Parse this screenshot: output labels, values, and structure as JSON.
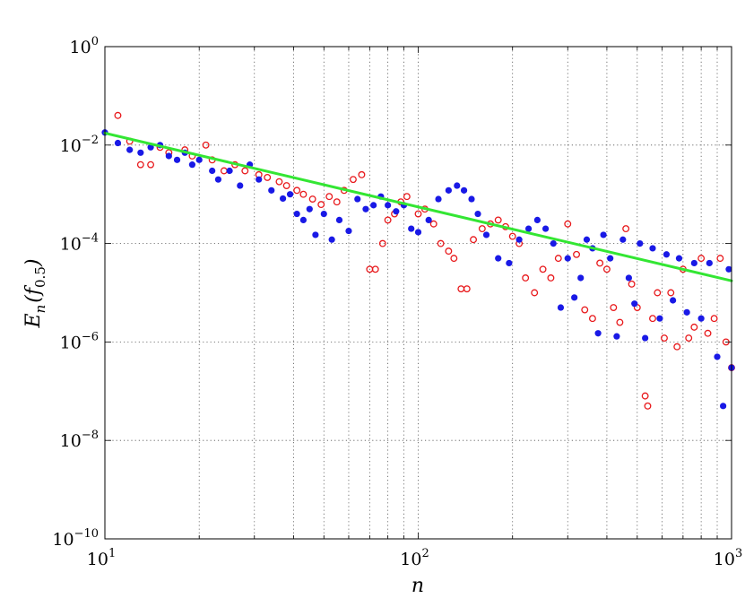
{
  "chart_data": {
    "type": "scatter",
    "x_scale": "log",
    "y_scale": "log",
    "xlim": [
      10,
      1000
    ],
    "ylim": [
      1e-10,
      1
    ],
    "grid": true,
    "xlabel": "n",
    "ylabel": {
      "main": "E",
      "sub_n": "n",
      "arg_open": "(",
      "arg_f": "f",
      "arg_sub": "0.5",
      "arg_close": ")"
    },
    "x_ticks": [
      {
        "base": "10",
        "exp": "1",
        "value": 10
      },
      {
        "base": "10",
        "exp": "2",
        "value": 100
      },
      {
        "base": "10",
        "exp": "3",
        "value": 1000
      }
    ],
    "y_ticks": [
      {
        "base": "10",
        "exp": "0",
        "value": 1
      },
      {
        "base": "10",
        "exp": "−2",
        "value": 0.01
      },
      {
        "base": "10",
        "exp": "−4",
        "value": 0.0001
      },
      {
        "base": "10",
        "exp": "−6",
        "value": 1e-06
      },
      {
        "base": "10",
        "exp": "−8",
        "value": 1e-08
      },
      {
        "base": "10",
        "exp": "−10",
        "value": 1e-10
      }
    ],
    "series": [
      {
        "name": "red open circles",
        "marker": "open-circle",
        "color": "#e8191c",
        "points": [
          [
            11,
            0.04
          ],
          [
            12,
            0.012
          ],
          [
            13,
            0.004
          ],
          [
            14,
            0.004
          ],
          [
            15,
            0.009
          ],
          [
            16,
            0.007
          ],
          [
            18,
            0.008
          ],
          [
            19,
            0.006
          ],
          [
            21,
            0.01
          ],
          [
            22,
            0.005
          ],
          [
            24,
            0.003
          ],
          [
            26,
            0.004
          ],
          [
            28,
            0.003
          ],
          [
            31,
            0.0025
          ],
          [
            33,
            0.0022
          ],
          [
            36,
            0.0018
          ],
          [
            38,
            0.0015
          ],
          [
            41,
            0.0012
          ],
          [
            43,
            0.001
          ],
          [
            46,
            0.0008
          ],
          [
            49,
            0.00062
          ],
          [
            52,
            0.0009
          ],
          [
            55,
            0.0007
          ],
          [
            58,
            0.0012
          ],
          [
            62,
            0.002
          ],
          [
            66,
            0.0025
          ],
          [
            70,
            3e-05
          ],
          [
            73,
            3e-05
          ],
          [
            77,
            0.0001
          ],
          [
            80,
            0.0003
          ],
          [
            84,
            0.0004
          ],
          [
            88,
            0.0007
          ],
          [
            92,
            0.0009
          ],
          [
            100,
            0.0004
          ],
          [
            105,
            0.0005
          ],
          [
            112,
            0.00025
          ],
          [
            118,
            0.0001
          ],
          [
            125,
            7e-05
          ],
          [
            130,
            5e-05
          ],
          [
            137,
            1.2e-05
          ],
          [
            143,
            1.2e-05
          ],
          [
            150,
            0.00012
          ],
          [
            160,
            0.0002
          ],
          [
            170,
            0.00025
          ],
          [
            180,
            0.0003
          ],
          [
            190,
            0.00022
          ],
          [
            200,
            0.00014
          ],
          [
            210,
            0.0001
          ],
          [
            220,
            2e-05
          ],
          [
            235,
            1e-05
          ],
          [
            250,
            3e-05
          ],
          [
            265,
            2e-05
          ],
          [
            280,
            5e-05
          ],
          [
            300,
            0.00025
          ],
          [
            320,
            6e-05
          ],
          [
            340,
            4.5e-06
          ],
          [
            360,
            3e-06
          ],
          [
            380,
            4e-05
          ],
          [
            400,
            3e-05
          ],
          [
            420,
            5e-06
          ],
          [
            440,
            2.5e-06
          ],
          [
            460,
            0.0002
          ],
          [
            480,
            1.5e-05
          ],
          [
            500,
            5e-06
          ],
          [
            530,
            8e-08
          ],
          [
            540,
            5e-08
          ],
          [
            560,
            3e-06
          ],
          [
            580,
            1e-05
          ],
          [
            610,
            1.2e-06
          ],
          [
            640,
            1e-05
          ],
          [
            670,
            8e-07
          ],
          [
            700,
            3e-05
          ],
          [
            730,
            1.2e-06
          ],
          [
            760,
            2e-06
          ],
          [
            800,
            5e-05
          ],
          [
            840,
            1.5e-06
          ],
          [
            880,
            3e-06
          ],
          [
            920,
            5e-05
          ],
          [
            960,
            1e-06
          ],
          [
            1000,
            3e-07
          ]
        ]
      },
      {
        "name": "blue filled dots",
        "marker": "filled-circle",
        "color": "#1919e6",
        "points": [
          [
            10,
            0.018
          ],
          [
            11,
            0.011
          ],
          [
            12,
            0.008
          ],
          [
            13,
            0.007
          ],
          [
            14,
            0.009
          ],
          [
            15,
            0.01
          ],
          [
            16,
            0.006
          ],
          [
            17,
            0.005
          ],
          [
            18,
            0.007
          ],
          [
            19,
            0.004
          ],
          [
            20,
            0.005
          ],
          [
            22,
            0.003
          ],
          [
            23,
            0.002
          ],
          [
            25,
            0.003
          ],
          [
            27,
            0.0015
          ],
          [
            29,
            0.004
          ],
          [
            31,
            0.002
          ],
          [
            34,
            0.0012
          ],
          [
            37,
            0.00082
          ],
          [
            39,
            0.001
          ],
          [
            41,
            0.0004
          ],
          [
            43,
            0.0003
          ],
          [
            45,
            0.0005
          ],
          [
            47,
            0.00015
          ],
          [
            50,
            0.0004
          ],
          [
            53,
            0.00012
          ],
          [
            56,
            0.0003
          ],
          [
            60,
            0.00018
          ],
          [
            64,
            0.0008
          ],
          [
            68,
            0.0005
          ],
          [
            72,
            0.0006
          ],
          [
            76,
            0.0009
          ],
          [
            80,
            0.0006
          ],
          [
            85,
            0.00045
          ],
          [
            90,
            0.0006
          ],
          [
            95,
            0.0002
          ],
          [
            100,
            0.00017
          ],
          [
            108,
            0.0003
          ],
          [
            116,
            0.0008
          ],
          [
            125,
            0.0012
          ],
          [
            133,
            0.0015
          ],
          [
            140,
            0.0012
          ],
          [
            148,
            0.0008
          ],
          [
            155,
            0.0004
          ],
          [
            165,
            0.00015
          ],
          [
            180,
            5e-05
          ],
          [
            195,
            4e-05
          ],
          [
            210,
            0.00012
          ],
          [
            225,
            0.0002
          ],
          [
            240,
            0.0003
          ],
          [
            255,
            0.0002
          ],
          [
            270,
            0.0001
          ],
          [
            285,
            5e-06
          ],
          [
            300,
            5e-05
          ],
          [
            315,
            8e-06
          ],
          [
            330,
            2e-05
          ],
          [
            345,
            0.00012
          ],
          [
            360,
            8e-05
          ],
          [
            375,
            1.5e-06
          ],
          [
            390,
            0.00015
          ],
          [
            410,
            5e-05
          ],
          [
            430,
            1.3e-06
          ],
          [
            450,
            0.00012
          ],
          [
            470,
            2e-05
          ],
          [
            490,
            6e-06
          ],
          [
            510,
            0.0001
          ],
          [
            530,
            1.2e-06
          ],
          [
            560,
            8e-05
          ],
          [
            590,
            3e-06
          ],
          [
            620,
            6e-05
          ],
          [
            650,
            7e-06
          ],
          [
            680,
            5e-05
          ],
          [
            720,
            4e-06
          ],
          [
            760,
            4e-05
          ],
          [
            800,
            3e-06
          ],
          [
            850,
            4e-05
          ],
          [
            900,
            5e-07
          ],
          [
            940,
            5e-08
          ],
          [
            980,
            3e-05
          ],
          [
            1000,
            3e-07
          ]
        ]
      }
    ],
    "fit_line": {
      "name": "green fit line",
      "color": "#33e633",
      "from": [
        10,
        0.0175
      ],
      "to": [
        1000,
        1.75e-05
      ]
    }
  }
}
